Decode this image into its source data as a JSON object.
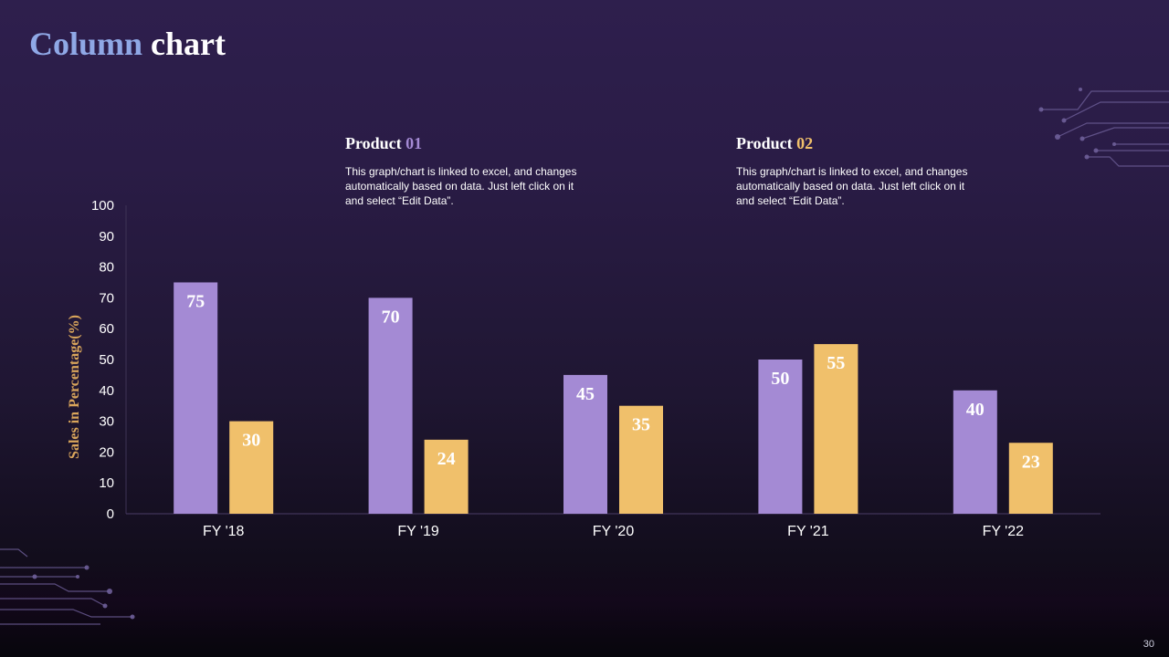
{
  "title": {
    "part1": "Column",
    "part2": "chart"
  },
  "products": [
    {
      "label": "Product",
      "number": "01",
      "number_color": "#a48ad4",
      "description": "This graph/chart is linked to excel, and changes automatically based on data. Just left click on it and select “Edit Data”."
    },
    {
      "label": "Product",
      "number": "02",
      "number_color": "#f0c06b",
      "description": "This graph/chart is linked to excel, and changes automatically based on data. Just left click on it and select “Edit Data”."
    }
  ],
  "chart_data": {
    "type": "bar",
    "categories": [
      "FY '18",
      "FY '19",
      "FY '20",
      "FY '21",
      "FY '22"
    ],
    "series": [
      {
        "name": "Product 01",
        "color": "#a48ad4",
        "values": [
          75,
          70,
          45,
          50,
          40
        ]
      },
      {
        "name": "Product 02",
        "color": "#f0c06b",
        "values": [
          30,
          24,
          35,
          55,
          23
        ]
      }
    ],
    "ylabel": "Sales in Percentage(%)",
    "ylabel_color": "#d9a55b",
    "ylim": [
      0,
      100
    ],
    "yticks": [
      0,
      10,
      20,
      30,
      40,
      50,
      60,
      70,
      80,
      90,
      100
    ]
  },
  "page_number": "30"
}
